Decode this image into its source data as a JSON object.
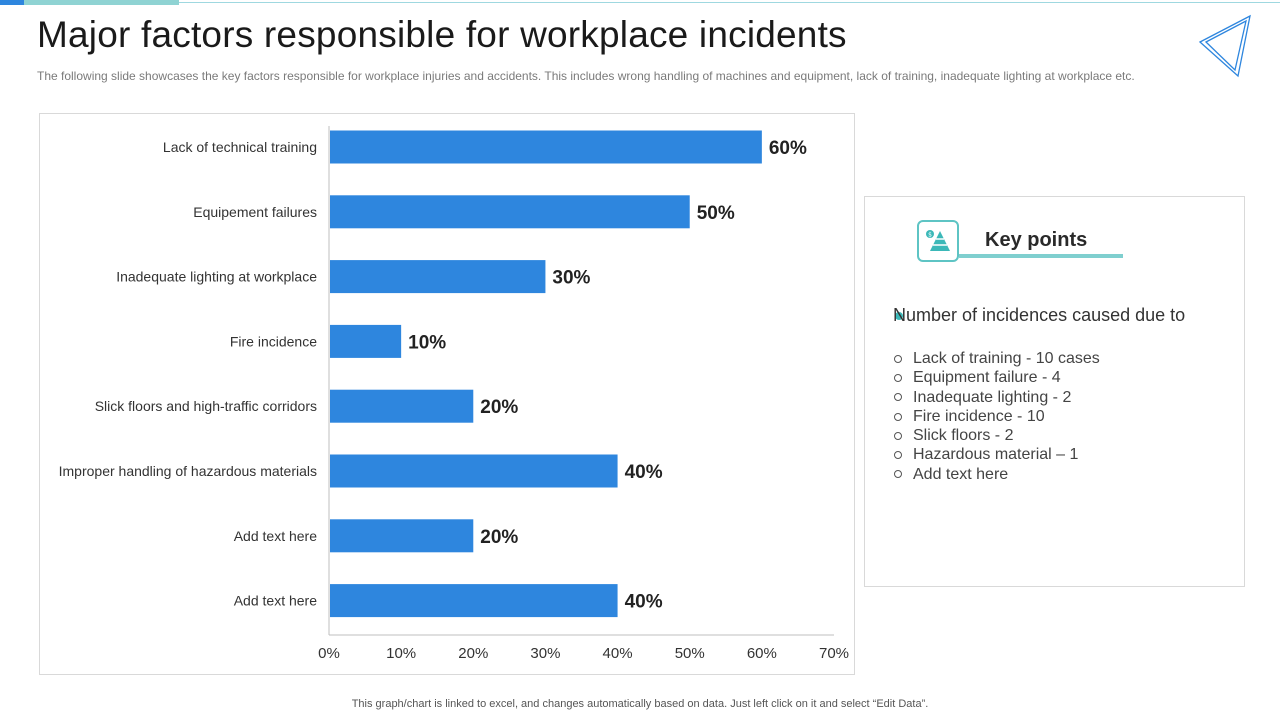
{
  "header": {
    "title": "Major factors responsible for workplace incidents",
    "subtitle": "The following slide showcases the key factors responsible for workplace injuries and accidents. This includes wrong handling of machines and equipment, lack of training, inadequate lighting at workplace etc."
  },
  "colors": {
    "bar": "#2e86de",
    "accent_teal": "#5ec4c4",
    "top_bar_blue": "#2e86de",
    "top_bar_teal": "#8fd3d3"
  },
  "chart_data": {
    "type": "bar",
    "orientation": "horizontal",
    "categories": [
      "Lack of technical training",
      "Equipement failures",
      "Inadequate lighting at workplace",
      "Fire incidence",
      "Slick floors and high-traffic corridors",
      "Improper handling of hazardous materials",
      "Add text here",
      "Add text here"
    ],
    "values": [
      60,
      50,
      30,
      10,
      20,
      40,
      20,
      40
    ],
    "data_labels": [
      "60%",
      "50%",
      "30%",
      "10%",
      "20%",
      "40%",
      "20%",
      "40%"
    ],
    "xlim": [
      0,
      70
    ],
    "xticks": [
      "0%",
      "10%",
      "20%",
      "30%",
      "40%",
      "50%",
      "60%",
      "70%"
    ],
    "grid": false,
    "legend": "none"
  },
  "key_points": {
    "title": "Key points",
    "icon": "pyramid-chart-icon",
    "heading": "Number of incidences caused due to",
    "items": [
      "Lack of training - 10 cases",
      "Equipment failure - 4",
      "Inadequate lighting - 2",
      "Fire incidence - 10",
      "Slick floors - 2",
      "Hazardous material – 1",
      "Add text here"
    ]
  },
  "footer": {
    "note": "This graph/chart is linked to excel, and changes automatically based on data. Just left click on it and select “Edit Data”."
  }
}
